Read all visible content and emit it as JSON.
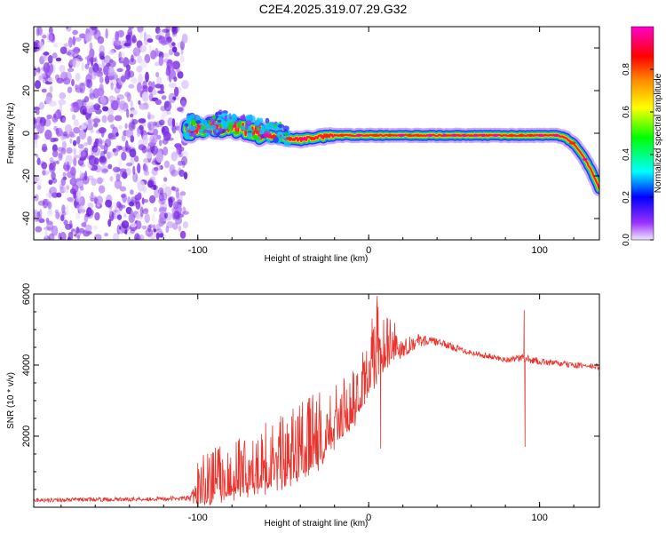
{
  "title": "C2E4.2025.319.07.29.G32",
  "colors": {
    "trace": "#e8332c",
    "noise": "#7b2fe0",
    "band": [
      "#ff00aa",
      "#ff0000",
      "#ffaa00",
      "#ffff00",
      "#00ee00",
      "#00ffff",
      "#0000ff",
      "#9b30ff",
      "#e6d6ff"
    ]
  },
  "chart_data": [
    {
      "type": "heatmap",
      "name": "spectrogram",
      "xlabel": "Height of straight line (km)",
      "ylabel": "Frequency (Hz)",
      "xlim": [
        -196,
        135
      ],
      "ylim": [
        -50,
        50
      ],
      "xticks": [
        -100,
        0,
        100
      ],
      "xtick_labels": [
        "-100",
        "0",
        "100"
      ],
      "yticks": [
        -40,
        -20,
        0,
        20,
        40
      ],
      "ytick_labels": [
        "-40",
        "-20",
        "0",
        "20",
        "40"
      ],
      "noise_region_x": [
        -196,
        -107
      ],
      "ridge": {
        "x": [
          -107,
          -100,
          -90,
          -80,
          -70,
          -60,
          -50,
          -40,
          -30,
          -20,
          -10,
          0,
          20,
          40,
          60,
          80,
          100,
          110,
          115,
          120,
          125,
          130,
          135
        ],
        "freq": [
          1,
          2,
          3,
          3,
          1,
          -1,
          -2,
          -3,
          -2,
          -1,
          -1,
          -1,
          -1,
          -1,
          -1,
          -1,
          -1,
          -1,
          -2,
          -5,
          -10,
          -17,
          -26
        ]
      },
      "colorbar": {
        "label": "Normalized spectral amplitude",
        "range": [
          0,
          1
        ],
        "ticks": [
          0.0,
          0.2,
          0.4,
          0.6,
          0.8
        ],
        "tick_labels": [
          "0.0",
          "0.2",
          "0.4",
          "0.6",
          "0.8"
        ]
      }
    },
    {
      "type": "line",
      "name": "snr",
      "xlabel": "Height of straight line (km)",
      "ylabel": "SNR (10 * v/v)",
      "xlim": [
        -196,
        135
      ],
      "ylim": [
        0,
        6000
      ],
      "xticks": [
        -100,
        0,
        100
      ],
      "xtick_labels": [
        "-100",
        "0",
        "100"
      ],
      "yticks": [
        2000,
        4000,
        6000
      ],
      "ytick_labels": [
        "2000",
        "4000",
        "6000"
      ],
      "envelope": {
        "x": [
          -196,
          -150,
          -105,
          -100,
          -90,
          -80,
          -70,
          -60,
          -50,
          -40,
          -30,
          -20,
          -10,
          -5,
          0,
          5,
          10,
          20,
          30,
          40,
          60,
          80,
          90,
          95,
          100,
          110,
          120,
          135
        ],
        "level": [
          200,
          220,
          250,
          350,
          550,
          650,
          800,
          900,
          1100,
          1300,
          1600,
          2100,
          2600,
          3000,
          3700,
          4100,
          4300,
          4500,
          4700,
          4650,
          4350,
          4150,
          4200,
          4150,
          4100,
          4050,
          4000,
          3950
        ],
        "spread": [
          80,
          80,
          90,
          700,
          800,
          800,
          900,
          1000,
          1000,
          1100,
          1100,
          900,
          800,
          800,
          1000,
          1100,
          700,
          400,
          250,
          150,
          120,
          120,
          150,
          150,
          130,
          120,
          120,
          120
        ]
      },
      "spikes": [
        {
          "x": 5,
          "y": 5950
        },
        {
          "x": 7,
          "y": 1650
        },
        {
          "x": 11,
          "y": 5300
        },
        {
          "x": 91,
          "y": 5550
        },
        {
          "x": 91.5,
          "y": 1700
        }
      ]
    }
  ]
}
